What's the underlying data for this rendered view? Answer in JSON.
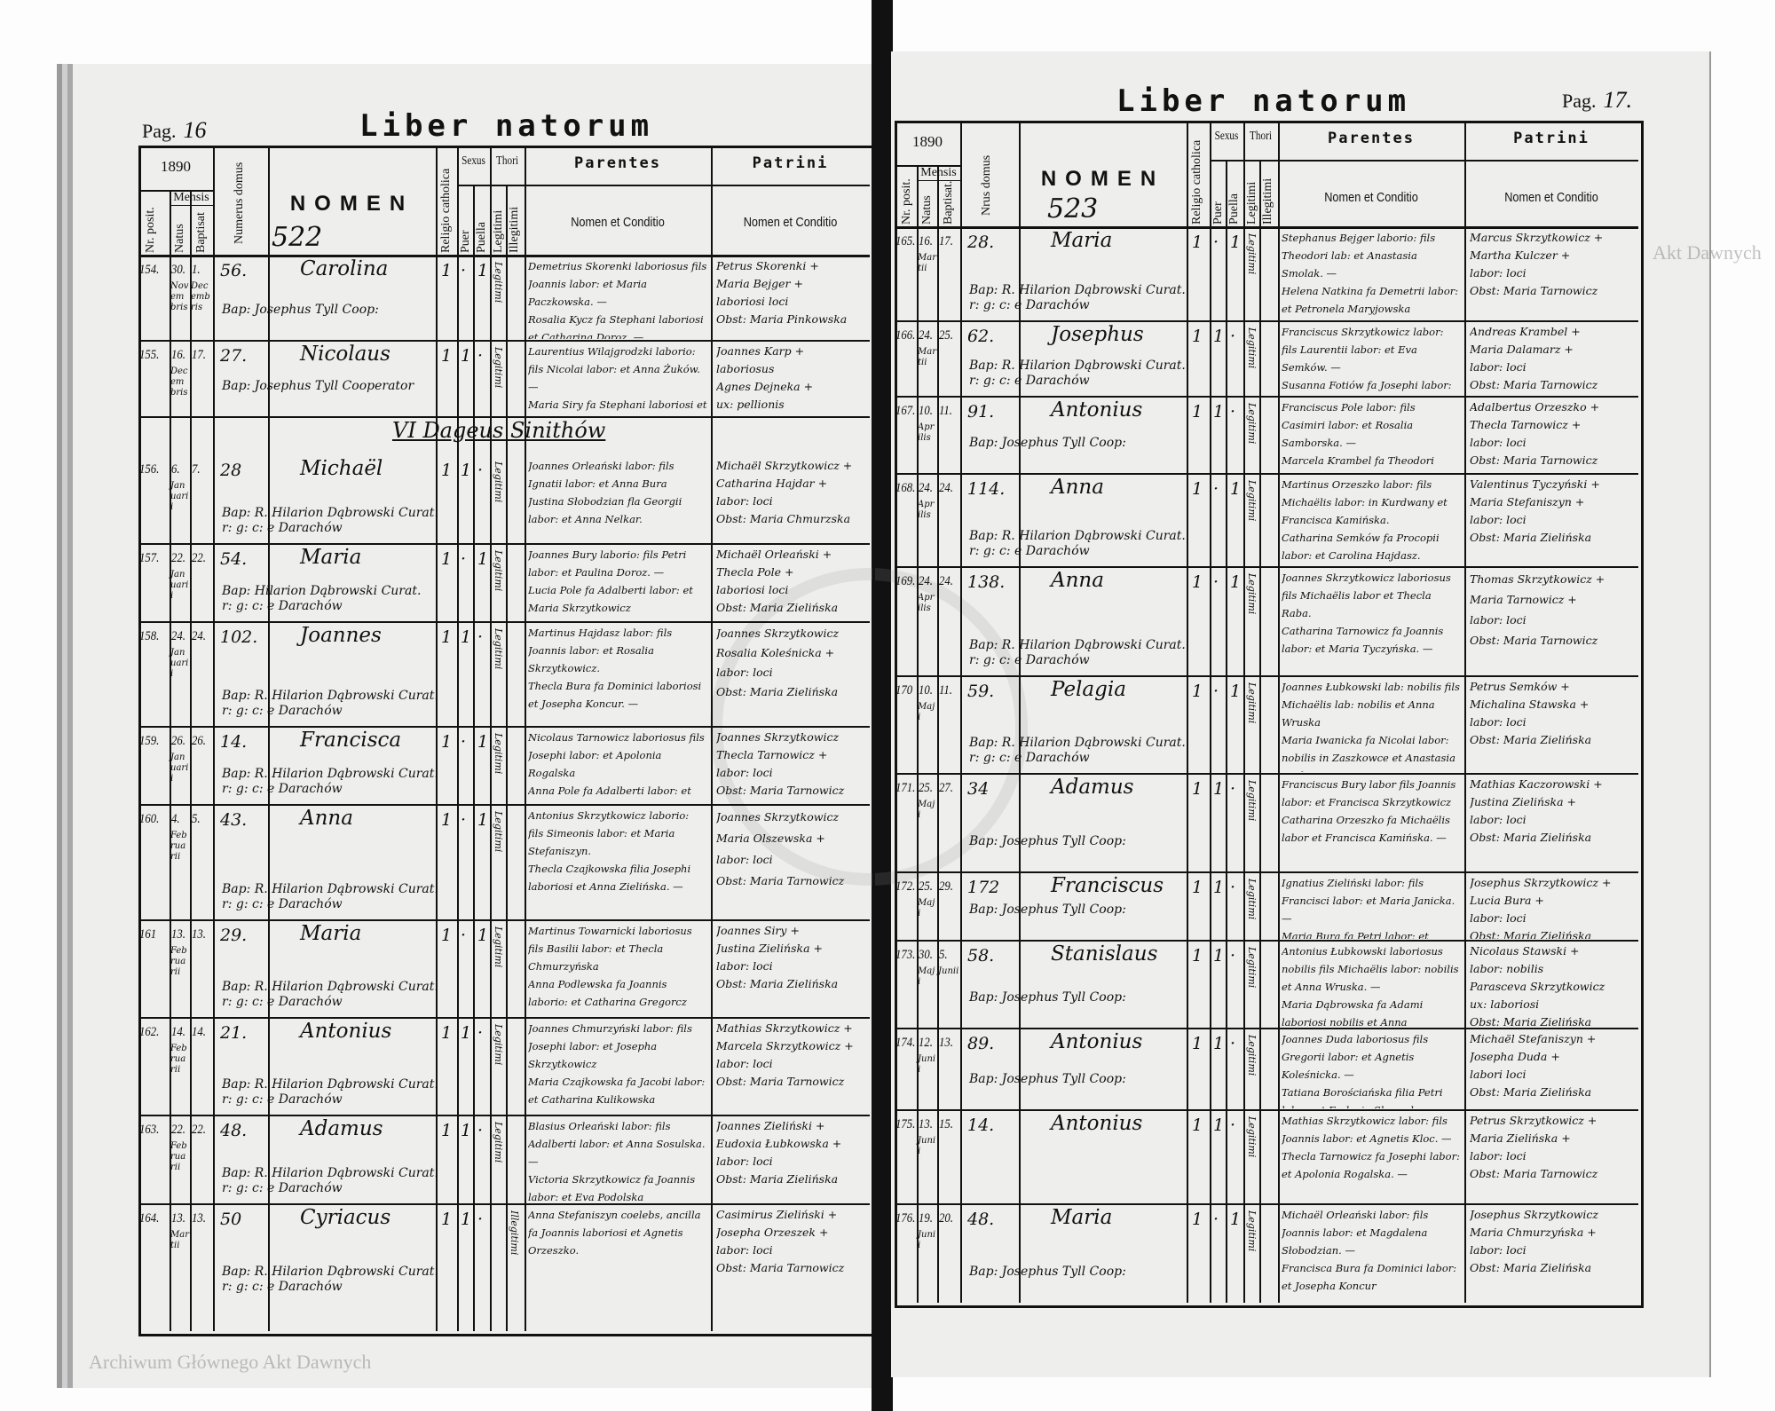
{
  "left_page": {
    "page_label": "Pag.",
    "page_number": "16",
    "title": "Liber natorum",
    "year": "1890",
    "register_number": "522",
    "section_heading": "VI Dageus Sinithów",
    "entries": [
      {
        "nr": "154.",
        "natus_day": "30.",
        "natus_month": "Novembris",
        "baptisat_day": "1.",
        "baptisat_month": "Decembris",
        "domus": "56.",
        "nomen": "Carolina",
        "religio": "1",
        "puer": "·",
        "puella": "1",
        "thori": "Legitimi",
        "baptizans": "Bap: Josephus Tyll Coop:",
        "parentes": "Demetrius Skorenki laboriosus fils Joannis labor: et Maria Paczkowska. —\nRosalia Kycz fa Stephani laboriosi et Catharina Doroz. —",
        "patrini": "Petrus Skorenki +\nMaria Bejger +\nlaboriosi loci\nObst: Maria Pinkowska"
      },
      {
        "nr": "155.",
        "natus_day": "16.",
        "natus_month": "Decembris",
        "baptisat_day": "17.",
        "baptisat_month": "",
        "domus": "27.",
        "nomen": "Nicolaus",
        "religio": "1",
        "puer": "1",
        "puella": "·",
        "thori": "Legitimi",
        "baptizans": "Bap: Josephus Tyll Cooperator",
        "parentes": "Laurentius Wilajgrodzki laborio: fils Nicolai labor: et Anna Żuków. —\nMaria Siry fa Stephani laboriosi et Xenia Kordas",
        "patrini": "Joannes Karp +\nlaboriosus\nAgnes Dejneka +\nux: pellionis\nObst: Maria Pinkowska"
      },
      {
        "nr": "156.",
        "natus_day": "6.",
        "natus_month": "Januarii",
        "baptisat_day": "7.",
        "baptisat_month": "",
        "domus": "28",
        "nomen": "Michaël",
        "religio": "1",
        "puer": "1",
        "puella": "·",
        "thori": "Legitimi",
        "baptizans": "Bap: R. Hilarion Dąbrowski Curat.\nr: g: c: e Darachów",
        "parentes": "Joannes Orleański labor: fils Ignatii labor: et Anna Bura\nJustina Słobodzian fla Georgii labor: et Anna Nelkar.",
        "patrini": "Michaël Skrzytkowicz +\nCatharina Hajdar +\nlabor: loci\nObst: Maria Chmurzska"
      },
      {
        "nr": "157.",
        "natus_day": "22.",
        "natus_month": "Januarii",
        "baptisat_day": "22.",
        "baptisat_month": "",
        "domus": "54.",
        "nomen": "Maria",
        "religio": "1",
        "puer": "·",
        "puella": "1",
        "thori": "Legitimi",
        "baptizans": "Bap: Hilarion Dąbrowski Curat.\nr: g: c: e Darachów",
        "parentes": "Joannes Bury laborio: fils Petri labor: et Paulina Doroz. —\nLucia Pole fa Adalberti labor: et Maria Skrzytkowicz",
        "patrini": "Michaël Orleański +\nThecla Pole +\nlaboriosi loci\nObst: Maria Zielińska"
      },
      {
        "nr": "158.",
        "natus_day": "24.",
        "natus_month": "Januarii",
        "baptisat_day": "24.",
        "baptisat_month": "",
        "domus": "102.",
        "nomen": "Joannes",
        "religio": "1",
        "puer": "1",
        "puella": "·",
        "thori": "Legitimi",
        "baptizans": "Bap: R. Hilarion Dąbrowski Curat.\nr: g: c: e Darachów",
        "parentes": "Martinus Hajdasz labor: fils Joannis labor: et Rosalia Skrzytkowicz.\nThecla Bura fa Dominici laboriosi et Josepha Koncur. —",
        "patrini": "Joannes Skrzytkowicz\nRosalia Koleśnicka +\nlabor: loci\nObst: Maria Zielińska"
      },
      {
        "nr": "159.",
        "natus_day": "26.",
        "natus_month": "Januarii",
        "baptisat_day": "26.",
        "baptisat_month": "",
        "domus": "14.",
        "nomen": "Francisca",
        "religio": "1",
        "puer": "·",
        "puella": "1",
        "thori": "Legitimi",
        "baptizans": "Bap: R. Hilarion Dąbrowski Curat.\nr: g: c: e Darachów",
        "parentes": "Nicolaus Tarnowicz laboriosus fils Josephi labor: et Apolonia Rogalska\nAnna Pole fa Adalberti labor: et Justina Orzeszek",
        "patrini": "Joannes Skrzytkowicz\nThecla Tarnowicz +\nlabor: loci\nObst: Maria Tarnowicz"
      },
      {
        "nr": "160.",
        "natus_day": "4.",
        "natus_month": "Februarii",
        "baptisat_day": "5.",
        "baptisat_month": "",
        "domus": "43.",
        "nomen": "Anna",
        "religio": "1",
        "puer": "·",
        "puella": "1",
        "thori": "Legitimi",
        "baptizans": "Bap: R. Hilarion Dąbrowski Curat.\nr: g: c: e Darachów",
        "parentes": "Antonius Skrzytkowicz laborio: fils Simeonis labor: et Maria Stefaniszyn.\nThecla Czajkowska filia Josephi laboriosi et Anna Zielińska. —",
        "patrini": "Joannes Skrzytkowicz\nMaria Olszewska +\nlabor: loci\nObst: Maria Tarnowicz"
      },
      {
        "nr": "161",
        "natus_day": "13.",
        "natus_month": "Februarii",
        "baptisat_day": "13.",
        "baptisat_month": "",
        "domus": "29.",
        "nomen": "Maria",
        "religio": "1",
        "puer": "·",
        "puella": "1",
        "thori": "Legitimi",
        "baptizans": "Bap: R. Hilarion Dąbrowski Curat.\nr: g: c: e Darachów",
        "parentes": "Martinus Towarnicki laboriosus fils Basilii labor: et Thecla Chmurzyńska\nAnna Podlewska fa Joannis laborio: et Catharina Gregorcz",
        "patrini": "Joannes Siry +\nJustina Zielińska +\nlabor: loci\nObst: Maria Zielińska"
      },
      {
        "nr": "162.",
        "natus_day": "14.",
        "natus_month": "Februarii",
        "baptisat_day": "14.",
        "baptisat_month": "",
        "domus": "21.",
        "nomen": "Antonius",
        "religio": "1",
        "puer": "1",
        "puella": "·",
        "thori": "Legitimi",
        "baptizans": "Bap: R. Hilarion Dąbrowski Curat.\nr: g: c: e Darachów",
        "parentes": "Joannes Chmurzyński labor: fils Josephi labor: et Josepha Skrzytkowicz\nMaria Czajkowska fa Jacobi labor: et Catharina Kulikowska",
        "patrini": "Mathias Skrzytkowicz +\nMarcela Skrzytkowicz +\nlabor: loci\nObst: Maria Tarnowicz"
      },
      {
        "nr": "163.",
        "natus_day": "22.",
        "natus_month": "Februarii",
        "baptisat_day": "22.",
        "baptisat_month": "",
        "domus": "48.",
        "nomen": "Adamus",
        "religio": "1",
        "puer": "1",
        "puella": "·",
        "thori": "Legitimi",
        "baptizans": "Bap: R. Hilarion Dąbrowski Curat.\nr: g: c: e Darachów",
        "parentes": "Blasius Orleański labor: fils Adalberti labor: et Anna Sosulska. —\nVictoria Skrzytkowicz fa Joannis labor: et Eva Podolska",
        "patrini": "Joannes Zieliński +\nEudoxia Łubkowska +\nlabor: loci\nObst: Maria Zielińska"
      },
      {
        "nr": "164.",
        "natus_day": "13.",
        "natus_month": "Martii",
        "baptisat_day": "13.",
        "baptisat_month": "",
        "domus": "50",
        "nomen": "Cyriacus",
        "religio": "1",
        "puer": "1",
        "puella": "·",
        "thori": "Illegitimi",
        "baptizans": "Bap: R. Hilarion Dąbrowski Curat.\nr: g: c: e Darachów",
        "parentes": "Anna Stefaniszyn coelebs, ancilla fa Joannis laboriosi et Agnetis Orzeszko.",
        "patrini": "Casimirus Zieliński +\nJosepha Orzeszek +\nlabor: loci\nObst: Maria Tarnowicz"
      }
    ]
  },
  "right_page": {
    "page_label": "Pag.",
    "page_number": "17.",
    "title": "Liber natorum",
    "year": "1890",
    "register_number": "523",
    "entries": [
      {
        "nr": "165.",
        "natus_day": "16.",
        "natus_month": "Martii",
        "baptisat_day": "17.",
        "baptisat_month": "",
        "domus": "28.",
        "nomen": "Maria",
        "religio": "1",
        "puer": "·",
        "puella": "1",
        "thori": "Legitimi",
        "baptizans": "Bap: R. Hilarion Dąbrowski Curat.\nr: g: c: e Darachów",
        "parentes": "Stephanus Bejger laborio: fils Theodori lab: et Anastasia Smolak. —\nHelena Natkina fa Demetrii labor: et Petronela Maryjowska",
        "patrini": "Marcus Skrzytkowicz +\nMartha Kulczer +\nlabor: loci\nObst: Maria Tarnowicz"
      },
      {
        "nr": "166.",
        "natus_day": "24.",
        "natus_month": "Martii",
        "baptisat_day": "25.",
        "baptisat_month": "",
        "domus": "62.",
        "nomen": "Josephus",
        "religio": "1",
        "puer": "1",
        "puella": "·",
        "thori": "Legitimi",
        "baptizans": "Bap: R. Hilarion Dąbrowski Curat.\nr: g: c: e Darachów",
        "parentes": "Franciscus Skrzytkowicz labor: fils Laurentii labor: et Eva Semków. —\nSusanna Fotiów fa Josephi labor: et Thecla Stefaniszyn",
        "patrini": "Andreas Krambel +\nMaria Dalamarz +\nlabor: loci\nObst: Maria Tarnowicz"
      },
      {
        "nr": "167.",
        "natus_day": "10.",
        "natus_month": "Aprilis",
        "baptisat_day": "11.",
        "baptisat_month": "",
        "domus": "91.",
        "nomen": "Antonius",
        "religio": "1",
        "puer": "1",
        "puella": "·",
        "thori": "Legitimi",
        "baptizans": "Bap: Josephus Tyll Coop:",
        "parentes": "Franciscus Pole labor: fils Casimiri labor: et Rosalia Samborska. —\nMarcela Krambel fa Theodori labor: et Maria Orzeszko",
        "patrini": "Adalbertus Orzeszko +\nThecla Tarnowicz +\nlabor: loci\nObst: Maria Tarnowicz"
      },
      {
        "nr": "168.",
        "natus_day": "24.",
        "natus_month": "Aprilis",
        "baptisat_day": "24.",
        "baptisat_month": "",
        "domus": "114.",
        "nomen": "Anna",
        "religio": "1",
        "puer": "·",
        "puella": "1",
        "thori": "Legitimi",
        "baptizans": "Bap: R. Hilarion Dąbrowski Curat.\nr: g: c: e Darachów",
        "parentes": "Martinus Orzeszko labor: fils Michaëlis labor: in Kurdwany et Francisca Kamińska.\nCatharina Semków fa Procopii labor: et Carolina Hajdasz.",
        "patrini": "Valentinus Tyczyński +\nMaria Stefaniszyn +\nlabor: loci\nObst: Maria Zielińska"
      },
      {
        "nr": "169.",
        "natus_day": "24.",
        "natus_month": "Aprilis",
        "baptisat_day": "24.",
        "baptisat_month": "",
        "domus": "138.",
        "nomen": "Anna",
        "religio": "1",
        "puer": "·",
        "puella": "1",
        "thori": "Legitimi",
        "baptizans": "Bap: R. Hilarion Dąbrowski Curat.\nr: g: c: e Darachów",
        "parentes": "Joannes Skrzytkowicz laboriosus fils Michaëlis labor et Thecla Raba.\nCatharina Tarnowicz fa Joannis labor: et Maria Tyczyńska. —",
        "patrini": "Thomas Skrzytkowicz +\nMaria Tarnowicz +\nlabor: loci\nObst: Maria Tarnowicz"
      },
      {
        "nr": "170",
        "natus_day": "10.",
        "natus_month": "Maji",
        "baptisat_day": "11.",
        "baptisat_month": "",
        "domus": "59.",
        "nomen": "Pelagia",
        "religio": "1",
        "puer": "·",
        "puella": "1",
        "thori": "Legitimi",
        "baptizans": "Bap: R. Hilarion Dąbrowski Curat.\nr: g: c: e Darachów",
        "parentes": "Joannes Łubkowski lab: nobilis fils Michaëlis lab: nobilis et Anna Wruska\nMaria Iwanicka fa Nicolai labor: nobilis in Zaszkowce et Anastasia Beska",
        "patrini": "Petrus Semków +\nMichalina Stawska +\nlabor: loci\nObst: Maria Zielińska"
      },
      {
        "nr": "171.",
        "natus_day": "25.",
        "natus_month": "Maji",
        "baptisat_day": "27.",
        "baptisat_month": "",
        "domus": "34",
        "nomen": "Adamus",
        "religio": "1",
        "puer": "1",
        "puella": "·",
        "thori": "Legitimi",
        "baptizans": "Bap: Josephus Tyll Coop:",
        "parentes": "Franciscus Bury labor fils Joannis labor: et Francisca Skrzytkowicz\nCatharina Orzeszko fa Michaëlis labor et Francisca Kamińska. —",
        "patrini": "Mathias Kaczorowski +\nJustina Zielińska +\nlabor: loci\nObst: Maria Zielińska"
      },
      {
        "nr": "172.",
        "natus_day": "25.",
        "natus_month": "Maji",
        "baptisat_day": "29.",
        "baptisat_month": "",
        "domus": "172",
        "nomen": "Franciscus",
        "religio": "1",
        "puer": "1",
        "puella": "·",
        "thori": "Legitimi",
        "baptizans": "Bap: Josephus Tyll Coop:",
        "parentes": "Ignatius Zieliński labor: fils Francisci labor: et Maria Janicka. —\nMaria Bura fa Petri labor: et Paulina Doroz",
        "patrini": "Josephus Skrzytkowicz +\nLucia Bura +\nlabor: loci\nObst: Maria Zielińska"
      },
      {
        "nr": "173.",
        "natus_day": "30.",
        "natus_month": "Maji",
        "baptisat_day": "5.",
        "baptisat_month": "Junii",
        "domus": "58.",
        "nomen": "Stanislaus",
        "religio": "1",
        "puer": "1",
        "puella": "·",
        "thori": "Legitimi",
        "baptizans": "Bap: Josephus Tyll Coop:",
        "parentes": "Antonius Łubkowski laboriosus nobilis fils Michaëlis labor: nobilis et Anna Wruska. —\nMaria Dąbrowska fa Adami laboriosi nobilis et Anna Bieganowska. —",
        "patrini": "Nicolaus Stawski +\nlabor: nobilis\nParasceva Skrzytkowicz\nux: laboriosi\nObst: Maria Zielińska"
      },
      {
        "nr": "174.",
        "natus_day": "12.",
        "natus_month": "Junii",
        "baptisat_day": "13.",
        "baptisat_month": "",
        "domus": "89.",
        "nomen": "Antonius",
        "religio": "1",
        "puer": "1",
        "puella": "·",
        "thori": "Legitimi",
        "baptizans": "Bap: Josephus Tyll Coop:",
        "parentes": "Joannes Duda laboriosus fils Gregorii labor: et Agnetis Koleśnicka. —\nTatiana Borościańska filia Petri labor: et Eudoxia Skorenka. —",
        "patrini": "Michaël Stefaniszyn +\nJosepha Duda +\nlabori loci\nObst: Maria Zielińska"
      },
      {
        "nr": "175.",
        "natus_day": "13.",
        "natus_month": "Junii",
        "baptisat_day": "15.",
        "baptisat_month": "",
        "domus": "14.",
        "nomen": "Antonius",
        "religio": "1",
        "puer": "1",
        "puella": "·",
        "thori": "Legitimi",
        "baptizans": "",
        "parentes": "Mathias Skrzytkowicz labor: fils Joannis labor: et Agnetis Kloc. —\nThecla Tarnowicz fa Josephi labor: et Apolonia Rogalska. —",
        "patrini": "Petrus Skrzytkowicz +\nMaria Zielińska +\nlabor: loci\nObst: Maria Tarnowicz"
      },
      {
        "nr": "176.",
        "natus_day": "19.",
        "natus_month": "Junii",
        "baptisat_day": "20.",
        "baptisat_month": "",
        "domus": "48.",
        "nomen": "Maria",
        "religio": "1",
        "puer": "·",
        "puella": "1",
        "thori": "Legitimi",
        "baptizans": "Bap: Josephus Tyll Coop:",
        "parentes": "Michaël Orleański labor: fils Joannis labor: et Magdalena Słobodzian. —\nFrancisca Bura fa Dominici labor: et Josepha Koncur",
        "patrini": "Josephus Skrzytkowicz\nMaria Chmurzyńska +\nlabor: loci\nObst: Maria Zielińska"
      }
    ]
  },
  "headers": {
    "nr_posit": "Nr. posit.",
    "mensis": "Mensis",
    "natus": "Natus",
    "baptisat_left": "Baptisat",
    "baptisat_right": "Baptisat.",
    "numerus_domus_left": "Numerus domus",
    "numerus_domus_right": "Nrus domus",
    "nomen": "NOMEN",
    "religio": "Religio catholica",
    "sexus": "Sexus",
    "puer": "Puer",
    "puella": "Puella",
    "thori": "Thori",
    "legitimi": "Legitimi",
    "illegitimi": "Illegitimi",
    "parentes": "Parentes",
    "patrini": "Patrini",
    "nomen_et_conditio": "Nomen et Conditio"
  },
  "watermark": {
    "text_left": "Archiwum Głównego Akt Dawnych",
    "text_right": "Akt Dawnych"
  }
}
